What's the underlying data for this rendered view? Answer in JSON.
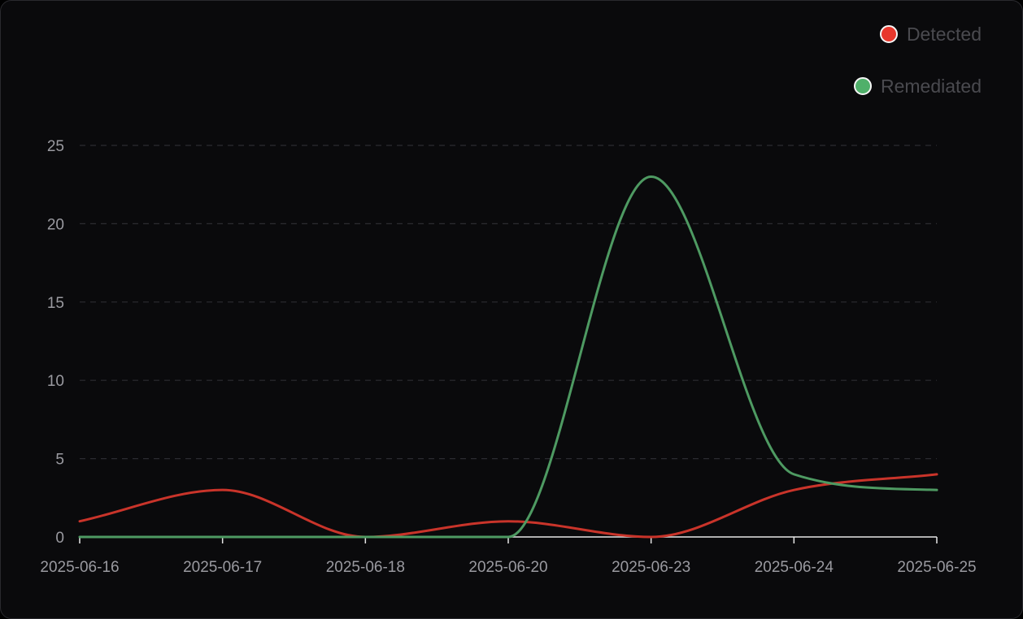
{
  "legend": [
    {
      "label": "Detected",
      "color": "#e8372c"
    },
    {
      "label": "Remediated",
      "color": "#4fb06a"
    }
  ],
  "chart_data": {
    "type": "line",
    "title": "",
    "xlabel": "",
    "ylabel": "",
    "categories": [
      "2025-06-16",
      "2025-06-17",
      "2025-06-18",
      "2025-06-20",
      "2025-06-23",
      "2025-06-24",
      "2025-06-25"
    ],
    "ylim": [
      0,
      25
    ],
    "yticks": [
      0,
      5,
      10,
      15,
      20,
      25
    ],
    "grid": "horizontal-dashed",
    "legend_position": "top-right",
    "smooth": true,
    "series": [
      {
        "name": "Detected",
        "color": "#c9342a",
        "values": [
          1,
          3,
          0,
          1,
          0,
          3,
          4
        ]
      },
      {
        "name": "Remediated",
        "color": "#4e9a62",
        "values": [
          0,
          0,
          0,
          0,
          23,
          4,
          3
        ]
      }
    ]
  }
}
